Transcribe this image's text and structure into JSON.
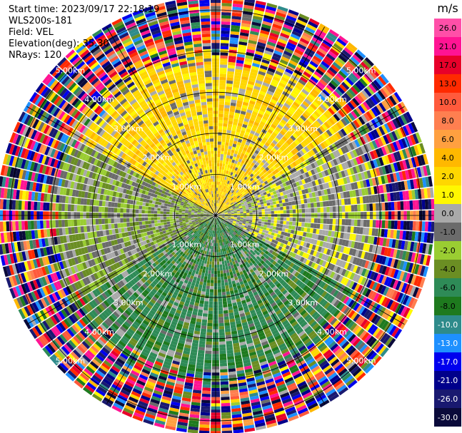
{
  "info": {
    "start_time": "Start time: 2023/09/17 22:18:19",
    "instrument": "WLS200s-181",
    "field": "Field: VEL",
    "elevation": "Elevation(deg): 35.30",
    "nrays": "NRays: 120"
  },
  "colorbar": {
    "unit": "m/s",
    "ticks": [
      "26.0",
      "21.0",
      "17.0",
      "13.0",
      "10.0",
      "8.0",
      "6.0",
      "4.0",
      "2.0",
      "1.0",
      "0.0",
      "-1.0",
      "-2.0",
      "-4.0",
      "-6.0",
      "-8.0",
      "-10.0",
      "-13.0",
      "-17.0",
      "-21.0",
      "-26.0",
      "-30.0"
    ],
    "colors": [
      "#ff4fa8",
      "#ff1493",
      "#e8002a",
      "#ff2a00",
      "#ff5a3c",
      "#ff7f50",
      "#ffa040",
      "#ffb800",
      "#ffd700",
      "#fff700",
      "#a9a9a9",
      "#6b6b6b",
      "#9acd32",
      "#6b8e23",
      "#2e8b57",
      "#1e7a1e",
      "#2e8b8b",
      "#1e90ff",
      "#0000ee",
      "#00008b",
      "#191970",
      "#0a0a3a"
    ]
  },
  "chart_data": {
    "type": "heatmap",
    "subtype": "radar-ppi-velocity",
    "range_ring_labels": [
      "1.00km",
      "2.00km",
      "3.00km",
      "4.00km",
      "5.00km"
    ],
    "range_rings_km": [
      1,
      2,
      3,
      4,
      5
    ],
    "max_range_km": 5.3,
    "nrays": 120,
    "color_unit": "m/s",
    "sectors": [
      {
        "azimuth_from": 300,
        "azimuth_to": 60,
        "dominant_velocity_ms": 3.0,
        "description": "north half positive"
      },
      {
        "azimuth_from": 60,
        "azimuth_to": 120,
        "dominant_velocity_ms": 0.0
      },
      {
        "azimuth_from": 120,
        "azimuth_to": 240,
        "dominant_velocity_ms": -5.0
      },
      {
        "azimuth_from": 240,
        "azimuth_to": 300,
        "dominant_velocity_ms": -1.5
      }
    ],
    "outer_noise_start_km": 3.6
  }
}
